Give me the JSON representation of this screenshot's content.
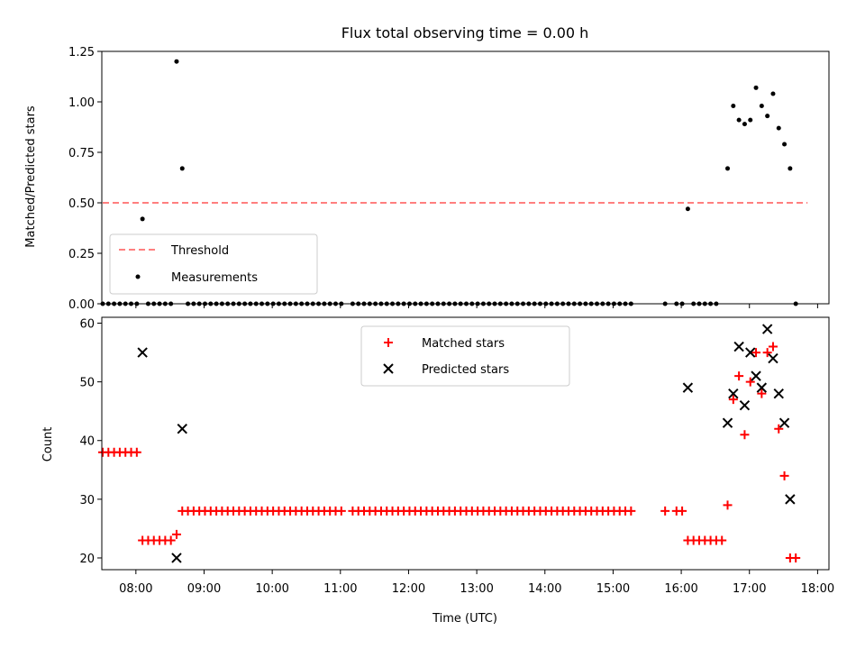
{
  "chart_data": [
    {
      "type": "scatter",
      "title": "Flux total observing time = 0.00 h",
      "ylabel": "Matched/Predicted stars",
      "xlim": [
        "07:30",
        "18:10"
      ],
      "ylim": [
        0,
        1.25
      ],
      "yticks": [
        0,
        0.25,
        0.5,
        0.75,
        1.0,
        1.25
      ],
      "ytick_labels": [
        "0.00",
        "0.25",
        "0.50",
        "0.75",
        "1.00",
        "1.25"
      ],
      "legend_position": "lower-left",
      "grid": false,
      "threshold": {
        "name": "Threshold",
        "value": 0.5,
        "x_range": [
          "07:30",
          "17:40"
        ],
        "color": "#ff7f7f",
        "style": "dashed"
      },
      "series": [
        {
          "name": "Measurements",
          "color": "#000000",
          "marker": "dot",
          "points": [
            [
              "08:05",
              0.42
            ],
            [
              "08:35",
              1.2
            ],
            [
              "08:40",
              0.67
            ],
            [
              "16:05",
              0.47
            ],
            [
              "16:40",
              0.67
            ],
            [
              "16:45",
              0.98
            ],
            [
              "16:50",
              0.91
            ],
            [
              "16:55",
              0.89
            ],
            [
              "17:00",
              0.91
            ],
            [
              "17:05",
              1.07
            ],
            [
              "17:10",
              0.98
            ],
            [
              "17:15",
              0.93
            ],
            [
              "17:20",
              1.04
            ],
            [
              "17:25",
              0.87
            ],
            [
              "17:30",
              0.79
            ],
            [
              "17:35",
              0.67
            ],
            [
              "07:30",
              0
            ],
            [
              "07:35",
              0
            ],
            [
              "07:40",
              0
            ],
            [
              "07:45",
              0
            ],
            [
              "07:50",
              0
            ],
            [
              "07:55",
              0
            ],
            [
              "08:00",
              0
            ],
            [
              "08:10",
              0
            ],
            [
              "08:15",
              0
            ],
            [
              "08:20",
              0
            ],
            [
              "08:25",
              0
            ],
            [
              "08:30",
              0
            ],
            [
              "08:45",
              0
            ],
            [
              "08:50",
              0
            ],
            [
              "08:55",
              0
            ],
            [
              "09:00",
              0
            ],
            [
              "09:05",
              0
            ],
            [
              "09:10",
              0
            ],
            [
              "09:15",
              0
            ],
            [
              "09:20",
              0
            ],
            [
              "09:25",
              0
            ],
            [
              "09:30",
              0
            ],
            [
              "09:35",
              0
            ],
            [
              "09:40",
              0
            ],
            [
              "09:45",
              0
            ],
            [
              "09:50",
              0
            ],
            [
              "09:55",
              0
            ],
            [
              "10:00",
              0
            ],
            [
              "10:05",
              0
            ],
            [
              "10:10",
              0
            ],
            [
              "10:15",
              0
            ],
            [
              "10:20",
              0
            ],
            [
              "10:25",
              0
            ],
            [
              "10:30",
              0
            ],
            [
              "10:35",
              0
            ],
            [
              "10:40",
              0
            ],
            [
              "10:45",
              0
            ],
            [
              "10:50",
              0
            ],
            [
              "10:55",
              0
            ],
            [
              "11:00",
              0
            ],
            [
              "11:10",
              0
            ],
            [
              "11:15",
              0
            ],
            [
              "11:20",
              0
            ],
            [
              "11:25",
              0
            ],
            [
              "11:30",
              0
            ],
            [
              "11:35",
              0
            ],
            [
              "11:40",
              0
            ],
            [
              "11:45",
              0
            ],
            [
              "11:50",
              0
            ],
            [
              "11:55",
              0
            ],
            [
              "12:00",
              0
            ],
            [
              "12:05",
              0
            ],
            [
              "12:10",
              0
            ],
            [
              "12:15",
              0
            ],
            [
              "12:20",
              0
            ],
            [
              "12:25",
              0
            ],
            [
              "12:30",
              0
            ],
            [
              "12:35",
              0
            ],
            [
              "12:40",
              0
            ],
            [
              "12:45",
              0
            ],
            [
              "12:50",
              0
            ],
            [
              "12:55",
              0
            ],
            [
              "13:00",
              0
            ],
            [
              "13:05",
              0
            ],
            [
              "13:10",
              0
            ],
            [
              "13:15",
              0
            ],
            [
              "13:20",
              0
            ],
            [
              "13:25",
              0
            ],
            [
              "13:30",
              0
            ],
            [
              "13:35",
              0
            ],
            [
              "13:40",
              0
            ],
            [
              "13:45",
              0
            ],
            [
              "13:50",
              0
            ],
            [
              "13:55",
              0
            ],
            [
              "14:00",
              0
            ],
            [
              "14:05",
              0
            ],
            [
              "14:10",
              0
            ],
            [
              "14:15",
              0
            ],
            [
              "14:20",
              0
            ],
            [
              "14:25",
              0
            ],
            [
              "14:30",
              0
            ],
            [
              "14:35",
              0
            ],
            [
              "14:40",
              0
            ],
            [
              "14:45",
              0
            ],
            [
              "14:50",
              0
            ],
            [
              "14:55",
              0
            ],
            [
              "15:00",
              0
            ],
            [
              "15:05",
              0
            ],
            [
              "15:10",
              0
            ],
            [
              "15:15",
              0
            ],
            [
              "15:45",
              0
            ],
            [
              "15:55",
              0
            ],
            [
              "16:00",
              0
            ],
            [
              "16:10",
              0
            ],
            [
              "16:15",
              0
            ],
            [
              "16:20",
              0
            ],
            [
              "16:25",
              0
            ],
            [
              "16:30",
              0
            ],
            [
              "17:40",
              0
            ]
          ]
        }
      ]
    },
    {
      "type": "scatter",
      "xlabel": "Time (UTC)",
      "ylabel": "Count",
      "xlim": [
        "07:30",
        "18:10"
      ],
      "ylim": [
        18,
        61
      ],
      "yticks": [
        20,
        30,
        40,
        50,
        60
      ],
      "ytick_labels": [
        "20",
        "30",
        "40",
        "50",
        "60"
      ],
      "xticks": [
        "08:00",
        "09:00",
        "10:00",
        "11:00",
        "12:00",
        "13:00",
        "14:00",
        "15:00",
        "16:00",
        "17:00",
        "18:00"
      ],
      "legend_position": "upper-center",
      "grid": false,
      "series": [
        {
          "name": "Matched stars",
          "color": "#ff0000",
          "marker": "plus",
          "points": [
            [
              "07:30",
              38
            ],
            [
              "07:35",
              38
            ],
            [
              "07:40",
              38
            ],
            [
              "07:45",
              38
            ],
            [
              "07:50",
              38
            ],
            [
              "07:55",
              38
            ],
            [
              "08:00",
              38
            ],
            [
              "08:05",
              23
            ],
            [
              "08:10",
              23
            ],
            [
              "08:15",
              23
            ],
            [
              "08:20",
              23
            ],
            [
              "08:25",
              23
            ],
            [
              "08:30",
              23
            ],
            [
              "08:35",
              24
            ],
            [
              "08:40",
              28
            ],
            [
              "08:45",
              28
            ],
            [
              "08:50",
              28
            ],
            [
              "08:55",
              28
            ],
            [
              "09:00",
              28
            ],
            [
              "09:05",
              28
            ],
            [
              "09:10",
              28
            ],
            [
              "09:15",
              28
            ],
            [
              "09:20",
              28
            ],
            [
              "09:25",
              28
            ],
            [
              "09:30",
              28
            ],
            [
              "09:35",
              28
            ],
            [
              "09:40",
              28
            ],
            [
              "09:45",
              28
            ],
            [
              "09:50",
              28
            ],
            [
              "09:55",
              28
            ],
            [
              "10:00",
              28
            ],
            [
              "10:05",
              28
            ],
            [
              "10:10",
              28
            ],
            [
              "10:15",
              28
            ],
            [
              "10:20",
              28
            ],
            [
              "10:25",
              28
            ],
            [
              "10:30",
              28
            ],
            [
              "10:35",
              28
            ],
            [
              "10:40",
              28
            ],
            [
              "10:45",
              28
            ],
            [
              "10:50",
              28
            ],
            [
              "10:55",
              28
            ],
            [
              "11:00",
              28
            ],
            [
              "11:10",
              28
            ],
            [
              "11:15",
              28
            ],
            [
              "11:20",
              28
            ],
            [
              "11:25",
              28
            ],
            [
              "11:30",
              28
            ],
            [
              "11:35",
              28
            ],
            [
              "11:40",
              28
            ],
            [
              "11:45",
              28
            ],
            [
              "11:50",
              28
            ],
            [
              "11:55",
              28
            ],
            [
              "12:00",
              28
            ],
            [
              "12:05",
              28
            ],
            [
              "12:10",
              28
            ],
            [
              "12:15",
              28
            ],
            [
              "12:20",
              28
            ],
            [
              "12:25",
              28
            ],
            [
              "12:30",
              28
            ],
            [
              "12:35",
              28
            ],
            [
              "12:40",
              28
            ],
            [
              "12:45",
              28
            ],
            [
              "12:50",
              28
            ],
            [
              "12:55",
              28
            ],
            [
              "13:00",
              28
            ],
            [
              "13:05",
              28
            ],
            [
              "13:10",
              28
            ],
            [
              "13:15",
              28
            ],
            [
              "13:20",
              28
            ],
            [
              "13:25",
              28
            ],
            [
              "13:30",
              28
            ],
            [
              "13:35",
              28
            ],
            [
              "13:40",
              28
            ],
            [
              "13:45",
              28
            ],
            [
              "13:50",
              28
            ],
            [
              "13:55",
              28
            ],
            [
              "14:00",
              28
            ],
            [
              "14:05",
              28
            ],
            [
              "14:10",
              28
            ],
            [
              "14:15",
              28
            ],
            [
              "14:20",
              28
            ],
            [
              "14:25",
              28
            ],
            [
              "14:30",
              28
            ],
            [
              "14:35",
              28
            ],
            [
              "14:40",
              28
            ],
            [
              "14:45",
              28
            ],
            [
              "14:50",
              28
            ],
            [
              "14:55",
              28
            ],
            [
              "15:00",
              28
            ],
            [
              "15:05",
              28
            ],
            [
              "15:10",
              28
            ],
            [
              "15:15",
              28
            ],
            [
              "15:45",
              28
            ],
            [
              "15:55",
              28
            ],
            [
              "16:00",
              28
            ],
            [
              "16:05",
              23
            ],
            [
              "16:10",
              23
            ],
            [
              "16:15",
              23
            ],
            [
              "16:20",
              23
            ],
            [
              "16:25",
              23
            ],
            [
              "16:30",
              23
            ],
            [
              "16:35",
              23
            ],
            [
              "16:40",
              29
            ],
            [
              "16:45",
              47
            ],
            [
              "16:50",
              51
            ],
            [
              "16:55",
              41
            ],
            [
              "17:00",
              50
            ],
            [
              "17:05",
              55
            ],
            [
              "17:10",
              48
            ],
            [
              "17:15",
              55
            ],
            [
              "17:20",
              56
            ],
            [
              "17:25",
              42
            ],
            [
              "17:30",
              34
            ],
            [
              "17:35",
              20
            ],
            [
              "17:40",
              20
            ]
          ]
        },
        {
          "name": "Predicted stars",
          "color": "#000000",
          "marker": "x",
          "points": [
            [
              "08:05",
              55
            ],
            [
              "08:35",
              20
            ],
            [
              "08:40",
              42
            ],
            [
              "16:05",
              49
            ],
            [
              "16:40",
              43
            ],
            [
              "16:45",
              48
            ],
            [
              "16:50",
              56
            ],
            [
              "16:55",
              46
            ],
            [
              "17:00",
              55
            ],
            [
              "17:05",
              51
            ],
            [
              "17:10",
              49
            ],
            [
              "17:15",
              59
            ],
            [
              "17:20",
              54
            ],
            [
              "17:25",
              48
            ],
            [
              "17:30",
              43
            ],
            [
              "17:35",
              30
            ]
          ]
        }
      ]
    }
  ]
}
